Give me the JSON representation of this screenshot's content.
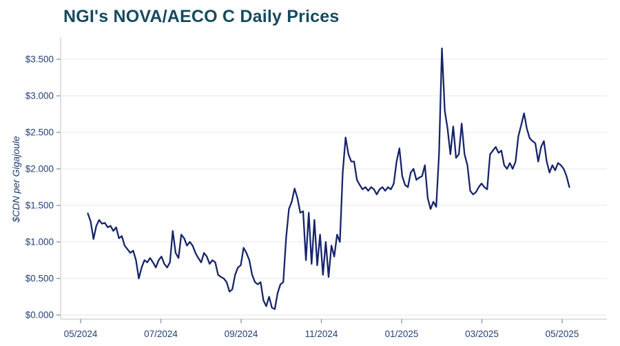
{
  "page": {
    "title": "NGI's NOVA/AECO C Daily Prices"
  },
  "chart_data": {
    "type": "line",
    "title": "NGI's NOVA/AECO C Daily Prices",
    "xlabel": "",
    "ylabel": "$CDN per Gigajoule",
    "series_name": "NOVA/AECO C daily price",
    "line_color": "#16246a",
    "grid": "horizontal",
    "legend": "none",
    "ylim": [
      0,
      3.5
    ],
    "y_tick_values": [
      0,
      0.5,
      1.0,
      1.5,
      2.0,
      2.5,
      3.0,
      3.5
    ],
    "y_tick_labels": [
      "$0.000",
      "$0.500",
      "$1.000",
      "$1.500",
      "$2.000",
      "$2.500",
      "$3.000",
      "$3.500"
    ],
    "x_tick_months": [
      0,
      2,
      4,
      6,
      8,
      10,
      12
    ],
    "x_tick_labels": [
      "05/2024",
      "07/2024",
      "09/2024",
      "11/2024",
      "01/2025",
      "03/2025",
      "05/2025"
    ],
    "x_start_month": 0.18,
    "x_end_month": 12.18,
    "values": [
      1.39,
      1.28,
      1.04,
      1.22,
      1.3,
      1.25,
      1.26,
      1.2,
      1.22,
      1.15,
      1.2,
      1.05,
      1.08,
      0.95,
      0.9,
      0.85,
      0.88,
      0.75,
      0.5,
      0.65,
      0.75,
      0.72,
      0.78,
      0.72,
      0.65,
      0.75,
      0.8,
      0.7,
      0.65,
      0.72,
      1.15,
      0.85,
      0.78,
      1.1,
      1.05,
      0.95,
      1.0,
      0.95,
      0.85,
      0.78,
      0.72,
      0.85,
      0.8,
      0.7,
      0.75,
      0.72,
      0.55,
      0.52,
      0.5,
      0.45,
      0.32,
      0.35,
      0.55,
      0.65,
      0.68,
      0.92,
      0.85,
      0.75,
      0.55,
      0.45,
      0.42,
      0.45,
      0.2,
      0.12,
      0.25,
      0.1,
      0.08,
      0.3,
      0.42,
      0.45,
      1.05,
      1.45,
      1.55,
      1.73,
      1.6,
      1.4,
      1.42,
      0.75,
      1.4,
      0.7,
      1.3,
      0.68,
      1.1,
      0.55,
      1.0,
      0.52,
      0.95,
      0.8,
      1.1,
      1.0,
      1.95,
      2.43,
      2.2,
      2.1,
      2.1,
      1.85,
      1.78,
      1.72,
      1.75,
      1.7,
      1.75,
      1.72,
      1.65,
      1.72,
      1.75,
      1.7,
      1.75,
      1.72,
      1.8,
      2.1,
      2.28,
      1.9,
      1.78,
      1.75,
      1.95,
      2.0,
      1.85,
      1.88,
      1.9,
      2.05,
      1.6,
      1.45,
      1.55,
      1.48,
      2.2,
      3.65,
      2.8,
      2.55,
      2.2,
      2.58,
      2.15,
      2.2,
      2.62,
      2.2,
      2.05,
      1.7,
      1.65,
      1.68,
      1.75,
      1.8,
      1.75,
      1.72,
      2.2,
      2.25,
      2.3,
      2.22,
      2.25,
      2.05,
      2.0,
      2.08,
      2.0,
      2.1,
      2.45,
      2.6,
      2.76,
      2.55,
      2.42,
      2.38,
      2.35,
      2.1,
      2.3,
      2.38,
      2.1,
      1.95,
      2.05,
      1.98,
      2.08,
      2.05,
      2.0,
      1.9,
      1.75
    ]
  }
}
